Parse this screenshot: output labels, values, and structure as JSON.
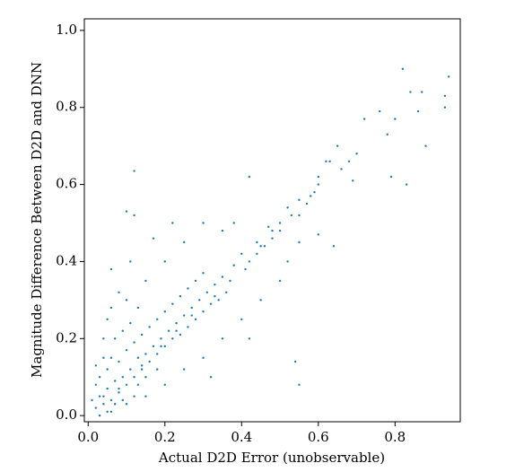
{
  "chart_data": {
    "type": "scatter",
    "x_label": "Actual D2D Error (unobservable)",
    "y_label": "Magnitude Difference Between D2D and DNN",
    "color": "#1f77b4",
    "xlim": [
      -0.01,
      0.97
    ],
    "ylim": [
      -0.016,
      1.03
    ],
    "xticks": [
      {
        "value": 0,
        "label": "0.0"
      },
      0.2,
      0.4,
      0.6,
      0.8
    ],
    "yticks": [
      {
        "value": 0,
        "label": "0.0"
      },
      0.2,
      0.4,
      0.6,
      0.8,
      {
        "value": 1,
        "label": "1.0"
      }
    ],
    "x": [
      0.02,
      0.03,
      0.04,
      0.05,
      0.03,
      0.06,
      0.07,
      0.08,
      0.05,
      0.09,
      0.1,
      0.06,
      0.11,
      0.12,
      0.08,
      0.13,
      0.14,
      0.1,
      0.15,
      0.16,
      0.12,
      0.17,
      0.18,
      0.14,
      0.19,
      0.2,
      0.16,
      0.21,
      0.22,
      0.18,
      0.23,
      0.24,
      0.2,
      0.25,
      0.26,
      0.22,
      0.27,
      0.28,
      0.24,
      0.29,
      0.3,
      0.26,
      0.31,
      0.32,
      0.28,
      0.33,
      0.34,
      0.3,
      0.35,
      0.36,
      0.38,
      0.4,
      0.42,
      0.44,
      0.46,
      0.47,
      0.5,
      0.52,
      0.55,
      0.58,
      0.6,
      0.62,
      0.02,
      0.04,
      0.06,
      0.06,
      0.08,
      0.05,
      0.1,
      0.11,
      0.15,
      0.13,
      0.2,
      0.17,
      0.25,
      0.22,
      0.3,
      0.35,
      0.38,
      0.06,
      0.1,
      0.15,
      0.2,
      0.25,
      0.3,
      0.35,
      0.32,
      0.4,
      0.45,
      0.42,
      0.5,
      0.52,
      0.55,
      0.6,
      0.64,
      0.03,
      0.01,
      0.02,
      0.04,
      0.07,
      0.09,
      0.11,
      0.13,
      0.15,
      0.18,
      0.12,
      0.09,
      0.07,
      0.05,
      0.82,
      0.94,
      0.93,
      0.93,
      0.84,
      0.87,
      0.12,
      0.42,
      0.55,
      0.54,
      0.1,
      0.12,
      0.88,
      0.8,
      0.86,
      0.78,
      0.72,
      0.76,
      0.7,
      0.69,
      0.79,
      0.83,
      0.63,
      0.65,
      0.6,
      0.57,
      0.55,
      0.5,
      0.48,
      0.45,
      0.66,
      0.68,
      0.59,
      0.53,
      0.48,
      0.44,
      0.41,
      0.37,
      0.33,
      0.27,
      0.23,
      0.19,
      0.14,
      0.08,
      0.04
    ],
    "values": [
      0.02,
      0.05,
      0.03,
      0.07,
      0.1,
      0.04,
      0.09,
      0.06,
      0.12,
      0.1,
      0.08,
      0.15,
      0.12,
      0.1,
      0.14,
      0.15,
      0.12,
      0.17,
      0.16,
      0.14,
      0.19,
      0.18,
      0.16,
      0.21,
      0.2,
      0.18,
      0.23,
      0.22,
      0.2,
      0.25,
      0.24,
      0.21,
      0.27,
      0.26,
      0.23,
      0.29,
      0.28,
      0.25,
      0.31,
      0.3,
      0.27,
      0.33,
      0.32,
      0.29,
      0.35,
      0.34,
      0.3,
      0.37,
      0.36,
      0.32,
      0.39,
      0.42,
      0.4,
      0.45,
      0.44,
      0.49,
      0.48,
      0.54,
      0.52,
      0.57,
      0.62,
      0.66,
      0.13,
      0.2,
      0.28,
      0.38,
      0.32,
      0.25,
      0.3,
      0.4,
      0.35,
      0.28,
      0.4,
      0.46,
      0.45,
      0.5,
      0.5,
      0.48,
      0.5,
      0.01,
      0.03,
      0.05,
      0.08,
      0.12,
      0.15,
      0.2,
      0.1,
      0.25,
      0.3,
      0.2,
      0.35,
      0.4,
      0.45,
      0.47,
      0.44,
      0.0,
      0.04,
      0.08,
      0.15,
      0.2,
      0.22,
      0.24,
      0.08,
      0.1,
      0.12,
      0.05,
      0.04,
      0.03,
      0.01,
      0.9,
      0.88,
      0.83,
      0.8,
      0.84,
      0.84,
      0.635,
      0.62,
      0.08,
      0.14,
      0.53,
      0.52,
      0.7,
      0.77,
      0.79,
      0.73,
      0.77,
      0.79,
      0.68,
      0.61,
      0.62,
      0.6,
      0.66,
      0.7,
      0.6,
      0.55,
      0.56,
      0.5,
      0.48,
      0.44,
      0.64,
      0.66,
      0.58,
      0.52,
      0.46,
      0.42,
      0.38,
      0.35,
      0.31,
      0.26,
      0.22,
      0.18,
      0.13,
      0.07,
      0.05
    ]
  }
}
